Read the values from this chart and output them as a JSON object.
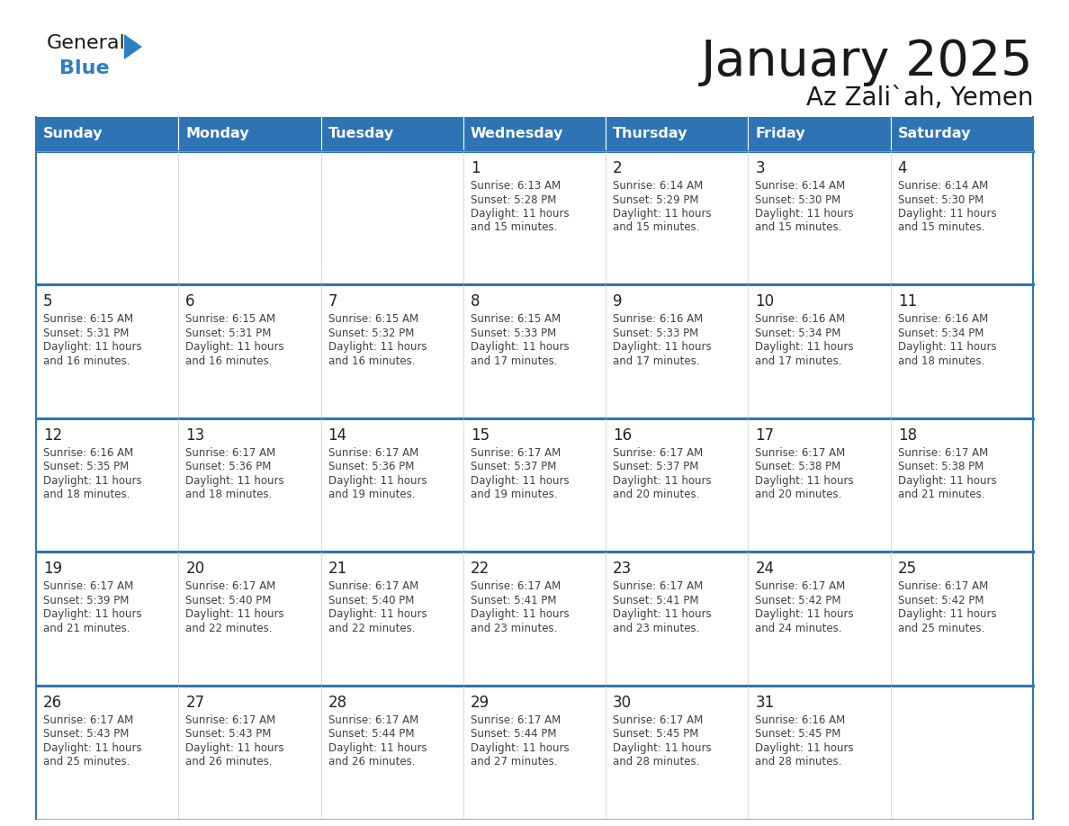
{
  "title": "January 2025",
  "subtitle": "Az Zali`ah, Yemen",
  "days_of_week": [
    "Sunday",
    "Monday",
    "Tuesday",
    "Wednesday",
    "Thursday",
    "Friday",
    "Saturday"
  ],
  "header_bg": "#2e74b5",
  "header_text": "#ffffff",
  "row_line_color": "#2e74b5",
  "cell_bg": "#ffffff",
  "text_color": "#404040",
  "day_number_color": "#222222",
  "calendar_data": [
    [
      {
        "day": null,
        "sunrise": null,
        "sunset": null,
        "daylight": null
      },
      {
        "day": null,
        "sunrise": null,
        "sunset": null,
        "daylight": null
      },
      {
        "day": null,
        "sunrise": null,
        "sunset": null,
        "daylight": null
      },
      {
        "day": 1,
        "sunrise": "6:13 AM",
        "sunset": "5:28 PM",
        "daylight": "11 hours and 15 minutes."
      },
      {
        "day": 2,
        "sunrise": "6:14 AM",
        "sunset": "5:29 PM",
        "daylight": "11 hours and 15 minutes."
      },
      {
        "day": 3,
        "sunrise": "6:14 AM",
        "sunset": "5:30 PM",
        "daylight": "11 hours and 15 minutes."
      },
      {
        "day": 4,
        "sunrise": "6:14 AM",
        "sunset": "5:30 PM",
        "daylight": "11 hours and 15 minutes."
      }
    ],
    [
      {
        "day": 5,
        "sunrise": "6:15 AM",
        "sunset": "5:31 PM",
        "daylight": "11 hours and 16 minutes."
      },
      {
        "day": 6,
        "sunrise": "6:15 AM",
        "sunset": "5:31 PM",
        "daylight": "11 hours and 16 minutes."
      },
      {
        "day": 7,
        "sunrise": "6:15 AM",
        "sunset": "5:32 PM",
        "daylight": "11 hours and 16 minutes."
      },
      {
        "day": 8,
        "sunrise": "6:15 AM",
        "sunset": "5:33 PM",
        "daylight": "11 hours and 17 minutes."
      },
      {
        "day": 9,
        "sunrise": "6:16 AM",
        "sunset": "5:33 PM",
        "daylight": "11 hours and 17 minutes."
      },
      {
        "day": 10,
        "sunrise": "6:16 AM",
        "sunset": "5:34 PM",
        "daylight": "11 hours and 17 minutes."
      },
      {
        "day": 11,
        "sunrise": "6:16 AM",
        "sunset": "5:34 PM",
        "daylight": "11 hours and 18 minutes."
      }
    ],
    [
      {
        "day": 12,
        "sunrise": "6:16 AM",
        "sunset": "5:35 PM",
        "daylight": "11 hours and 18 minutes."
      },
      {
        "day": 13,
        "sunrise": "6:17 AM",
        "sunset": "5:36 PM",
        "daylight": "11 hours and 18 minutes."
      },
      {
        "day": 14,
        "sunrise": "6:17 AM",
        "sunset": "5:36 PM",
        "daylight": "11 hours and 19 minutes."
      },
      {
        "day": 15,
        "sunrise": "6:17 AM",
        "sunset": "5:37 PM",
        "daylight": "11 hours and 19 minutes."
      },
      {
        "day": 16,
        "sunrise": "6:17 AM",
        "sunset": "5:37 PM",
        "daylight": "11 hours and 20 minutes."
      },
      {
        "day": 17,
        "sunrise": "6:17 AM",
        "sunset": "5:38 PM",
        "daylight": "11 hours and 20 minutes."
      },
      {
        "day": 18,
        "sunrise": "6:17 AM",
        "sunset": "5:38 PM",
        "daylight": "11 hours and 21 minutes."
      }
    ],
    [
      {
        "day": 19,
        "sunrise": "6:17 AM",
        "sunset": "5:39 PM",
        "daylight": "11 hours and 21 minutes."
      },
      {
        "day": 20,
        "sunrise": "6:17 AM",
        "sunset": "5:40 PM",
        "daylight": "11 hours and 22 minutes."
      },
      {
        "day": 21,
        "sunrise": "6:17 AM",
        "sunset": "5:40 PM",
        "daylight": "11 hours and 22 minutes."
      },
      {
        "day": 22,
        "sunrise": "6:17 AM",
        "sunset": "5:41 PM",
        "daylight": "11 hours and 23 minutes."
      },
      {
        "day": 23,
        "sunrise": "6:17 AM",
        "sunset": "5:41 PM",
        "daylight": "11 hours and 23 minutes."
      },
      {
        "day": 24,
        "sunrise": "6:17 AM",
        "sunset": "5:42 PM",
        "daylight": "11 hours and 24 minutes."
      },
      {
        "day": 25,
        "sunrise": "6:17 AM",
        "sunset": "5:42 PM",
        "daylight": "11 hours and 25 minutes."
      }
    ],
    [
      {
        "day": 26,
        "sunrise": "6:17 AM",
        "sunset": "5:43 PM",
        "daylight": "11 hours and 25 minutes."
      },
      {
        "day": 27,
        "sunrise": "6:17 AM",
        "sunset": "5:43 PM",
        "daylight": "11 hours and 26 minutes."
      },
      {
        "day": 28,
        "sunrise": "6:17 AM",
        "sunset": "5:44 PM",
        "daylight": "11 hours and 26 minutes."
      },
      {
        "day": 29,
        "sunrise": "6:17 AM",
        "sunset": "5:44 PM",
        "daylight": "11 hours and 27 minutes."
      },
      {
        "day": 30,
        "sunrise": "6:17 AM",
        "sunset": "5:45 PM",
        "daylight": "11 hours and 28 minutes."
      },
      {
        "day": 31,
        "sunrise": "6:16 AM",
        "sunset": "5:45 PM",
        "daylight": "11 hours and 28 minutes."
      },
      {
        "day": null,
        "sunrise": null,
        "sunset": null,
        "daylight": null
      }
    ]
  ]
}
